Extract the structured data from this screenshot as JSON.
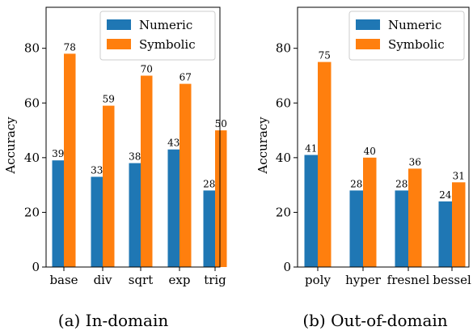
{
  "colors": {
    "numeric": "#1f77b4",
    "symbolic": "#ff7f0e"
  },
  "chart_data": [
    {
      "type": "bar",
      "caption": "(a) In-domain",
      "ylabel": "Accuracy",
      "ylim": [
        0,
        95
      ],
      "yticks": [
        0,
        20,
        40,
        60,
        80
      ],
      "categories": [
        "base",
        "div",
        "sqrt",
        "exp",
        "trig"
      ],
      "series": [
        {
          "name": "Numeric",
          "values": [
            39,
            33,
            38,
            43,
            28
          ]
        },
        {
          "name": "Symbolic",
          "values": [
            78,
            59,
            70,
            67,
            50
          ]
        }
      ],
      "legend": "top-right",
      "grid": false
    },
    {
      "type": "bar",
      "caption": "(b) Out-of-domain",
      "ylabel": "Accuracy",
      "ylim": [
        0,
        95
      ],
      "yticks": [
        0,
        20,
        40,
        60,
        80
      ],
      "categories": [
        "poly",
        "hyper",
        "fresnel",
        "bessel"
      ],
      "series": [
        {
          "name": "Numeric",
          "values": [
            41,
            28,
            28,
            24
          ]
        },
        {
          "name": "Symbolic",
          "values": [
            75,
            40,
            36,
            31
          ]
        }
      ],
      "legend": "top-right",
      "grid": false
    }
  ]
}
